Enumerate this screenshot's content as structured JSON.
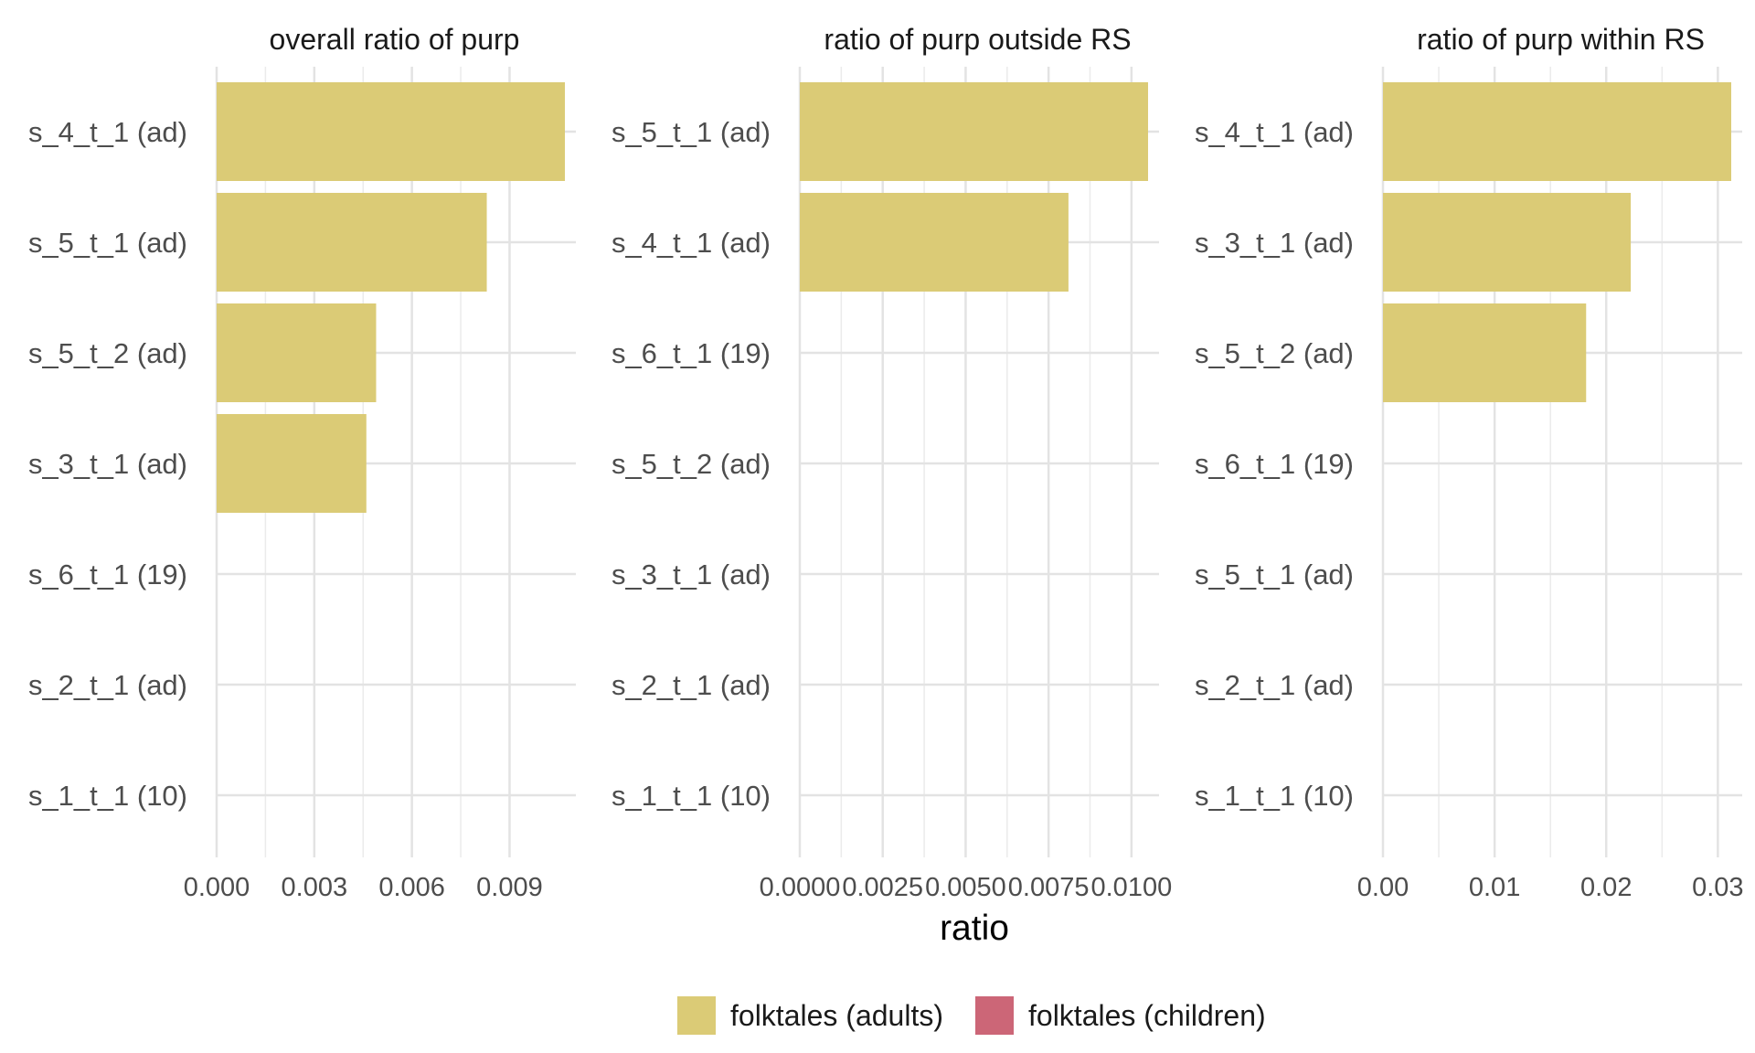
{
  "chart_data": {
    "type": "bar",
    "orientation": "horizontal",
    "xlabel": "ratio",
    "grid": true,
    "legend_position": "bottom",
    "legend": [
      {
        "label": "folktales (adults)",
        "color": "#DBCB76"
      },
      {
        "label": "folktales (children)",
        "color": "#CC6677"
      }
    ],
    "panels": [
      {
        "title": "overall ratio of purp",
        "categories": [
          "s_4_t_1 (ad)",
          "s_5_t_1 (ad)",
          "s_5_t_2 (ad)",
          "s_3_t_1 (ad)",
          "s_6_t_1 (19)",
          "s_2_t_1 (ad)",
          "s_1_t_1 (10)"
        ],
        "values": [
          0.0107,
          0.0083,
          0.0049,
          0.0046,
          0,
          0,
          0
        ],
        "groups": [
          "folktales (adults)",
          "folktales (adults)",
          "folktales (adults)",
          "folktales (adults)",
          "folktales (children)",
          "folktales (adults)",
          "folktales (children)"
        ],
        "xlim": [
          0,
          0.0107
        ],
        "ticks": [
          0,
          0.003,
          0.006,
          0.009
        ],
        "tick_labels": [
          "0.000",
          "0.003",
          "0.006",
          "0.009"
        ],
        "minor_ticks": [
          0.0015,
          0.0045,
          0.0075
        ]
      },
      {
        "title": "ratio of purp outside RS",
        "categories": [
          "s_5_t_1 (ad)",
          "s_4_t_1 (ad)",
          "s_6_t_1 (19)",
          "s_5_t_2 (ad)",
          "s_3_t_1 (ad)",
          "s_2_t_1 (ad)",
          "s_1_t_1 (10)"
        ],
        "values": [
          0.0105,
          0.0081,
          0,
          0,
          0,
          0,
          0
        ],
        "groups": [
          "folktales (adults)",
          "folktales (adults)",
          "folktales (children)",
          "folktales (adults)",
          "folktales (adults)",
          "folktales (adults)",
          "folktales (children)"
        ],
        "xlim": [
          0,
          0.0105
        ],
        "ticks": [
          0,
          0.0025,
          0.005,
          0.0075,
          0.01
        ],
        "tick_labels": [
          "0.0000",
          "0.0025",
          "0.0050",
          "0.0075",
          "0.0100"
        ],
        "minor_ticks": [
          0.00125,
          0.00375,
          0.00625,
          0.00875
        ]
      },
      {
        "title": "ratio of purp within RS",
        "categories": [
          "s_4_t_1 (ad)",
          "s_3_t_1 (ad)",
          "s_5_t_2 (ad)",
          "s_6_t_1 (19)",
          "s_5_t_1 (ad)",
          "s_2_t_1 (ad)",
          "s_1_t_1 (10)"
        ],
        "values": [
          0.0312,
          0.0222,
          0.0182,
          0,
          0,
          0,
          0
        ],
        "groups": [
          "folktales (adults)",
          "folktales (adults)",
          "folktales (adults)",
          "folktales (children)",
          "folktales (adults)",
          "folktales (adults)",
          "folktales (children)"
        ],
        "xlim": [
          0,
          0.0312
        ],
        "ticks": [
          0,
          0.01,
          0.02,
          0.03
        ],
        "tick_labels": [
          "0.00",
          "0.01",
          "0.02",
          "0.03"
        ],
        "minor_ticks": [
          0.005,
          0.015,
          0.025
        ]
      }
    ]
  }
}
